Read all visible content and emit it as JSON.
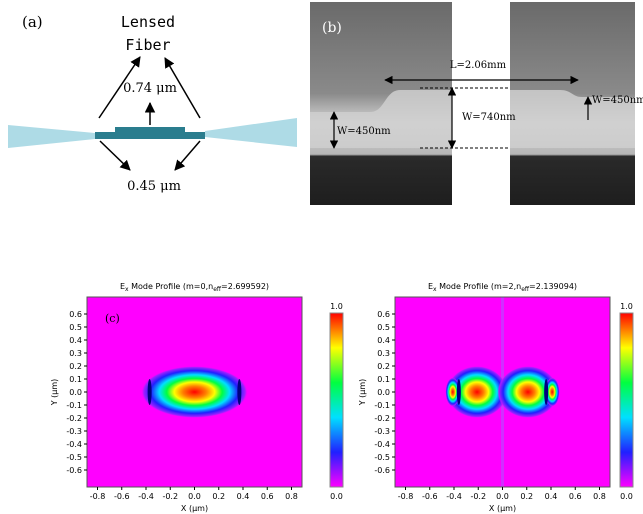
{
  "panels": {
    "a": {
      "label": "(a)",
      "title_lines": [
        "Lensed",
        "Fiber"
      ],
      "top_thickness": "0.74 μm",
      "bottom_thickness": "0.45 μm"
    },
    "b": {
      "label": "(b)",
      "length": "L=2.06mm",
      "width_center": "W=740nm",
      "width_left": "W=450nm",
      "width_right": "W=450nm"
    },
    "c": {
      "label": "(c)",
      "plots": [
        {
          "title_parts": [
            "E",
            "x",
            " Mode Profile (m=0,n",
            "eff",
            "=2.699592)"
          ],
          "y_label": "Y (μm)",
          "x_label": "X (μm)",
          "yticks": [
            "0.6",
            "0.5",
            "0.4",
            "0.3",
            "0.2",
            "0.1",
            "0.0",
            "-0.1",
            "-0.2",
            "-0.3",
            "-0.4",
            "-0.5",
            "-0.6"
          ],
          "xticks": [
            "-0.8",
            "-0.6",
            "-0.4",
            "-0.2",
            "0.0",
            "0.2",
            "0.4",
            "0.6",
            "0.8"
          ],
          "colorbar_ticks": [
            "1.0",
            "0.0"
          ]
        },
        {
          "title_parts": [
            "E",
            "x",
            " Mode Profile (m=2,n",
            "eff",
            "=2.139094)"
          ],
          "y_label": "Y (μm)",
          "x_label": "X (μm)",
          "yticks": [
            "0.6",
            "0.5",
            "0.4",
            "0.3",
            "0.2",
            "0.1",
            "0.0",
            "-0.1",
            "-0.2",
            "-0.3",
            "-0.4",
            "-0.5",
            "-0.6"
          ],
          "xticks": [
            "-0.8",
            "-0.6",
            "-0.4",
            "-0.2",
            "0.0",
            "0.2",
            "0.4",
            "0.6",
            "0.8"
          ],
          "colorbar_ticks": [
            "1.0",
            "0.0"
          ]
        }
      ]
    }
  }
}
